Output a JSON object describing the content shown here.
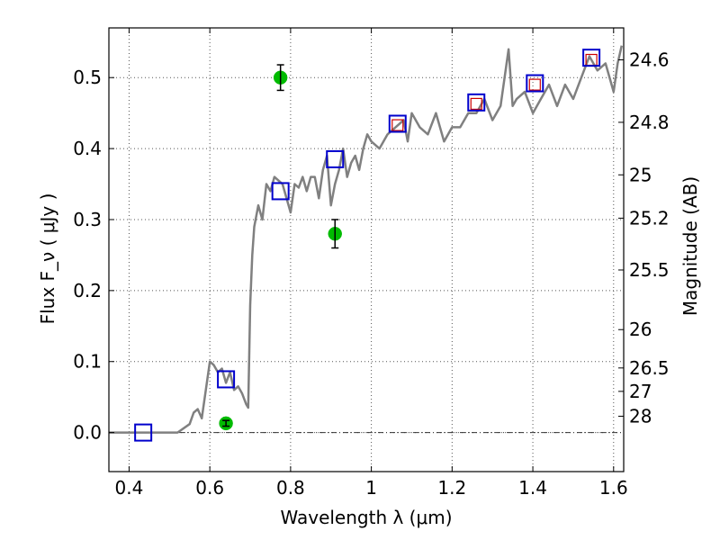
{
  "chart_data": {
    "type": "scatter",
    "title": "",
    "xlabel": "Wavelength  λ (μm)",
    "ylabel": "Flux  F_ν  ( μJy )",
    "ylabel_right": "Magnitude (AB)",
    "xlim": [
      0.35,
      1.625
    ],
    "ylim": [
      -0.055,
      0.57
    ],
    "grid": true,
    "x_ticks": [
      0.4,
      0.6,
      0.8,
      1.0,
      1.2,
      1.4,
      1.6
    ],
    "x_tick_labels": [
      "0.4",
      "0.6",
      "0.8",
      "1",
      "1.2",
      "1.4",
      "1.6"
    ],
    "y_ticks": [
      0.0,
      0.1,
      0.2,
      0.3,
      0.4,
      0.5
    ],
    "y_tick_labels": [
      "0.0",
      "0.1",
      "0.2",
      "0.3",
      "0.4",
      "0.5"
    ],
    "right_ticks": [
      {
        "label": "24.6",
        "flux": 0.525
      },
      {
        "label": "24.8",
        "flux": 0.437
      },
      {
        "label": "25",
        "flux": 0.363
      },
      {
        "label": "25.2",
        "flux": 0.302
      },
      {
        "label": "25.5",
        "flux": 0.229
      },
      {
        "label": "26",
        "flux": 0.145
      },
      {
        "label": "26.5",
        "flux": 0.091
      },
      {
        "label": "27",
        "flux": 0.058
      },
      {
        "label": "28",
        "flux": 0.023
      }
    ],
    "colors": {
      "model": "#808080",
      "observed": "#00bb00",
      "model_box": "#0000cc",
      "model_box_inner": "#cc0000",
      "grid": "#555555",
      "zero_line": "#333333"
    },
    "series": [
      {
        "type": "line",
        "x": [
          0.35,
          0.52,
          0.55,
          0.56,
          0.57,
          0.58,
          0.59,
          0.6,
          0.61,
          0.62,
          0.63,
          0.64,
          0.65,
          0.66,
          0.67,
          0.68,
          0.69,
          0.695,
          0.7,
          0.705,
          0.71,
          0.72,
          0.73,
          0.74,
          0.75,
          0.76,
          0.77,
          0.78,
          0.8,
          0.81,
          0.82,
          0.83,
          0.84,
          0.85,
          0.86,
          0.87,
          0.88,
          0.89,
          0.9,
          0.91,
          0.92,
          0.93,
          0.94,
          0.95,
          0.96,
          0.97,
          0.98,
          0.99,
          1.0,
          1.02,
          1.04,
          1.06,
          1.08,
          1.09,
          1.1,
          1.12,
          1.14,
          1.16,
          1.18,
          1.2,
          1.22,
          1.24,
          1.26,
          1.28,
          1.3,
          1.32,
          1.34,
          1.35,
          1.36,
          1.38,
          1.4,
          1.42,
          1.44,
          1.46,
          1.48,
          1.5,
          1.52,
          1.54,
          1.56,
          1.58,
          1.6,
          1.61,
          1.62
        ],
        "y": [
          0.0,
          0.0,
          0.012,
          0.028,
          0.033,
          0.02,
          0.06,
          0.1,
          0.095,
          0.085,
          0.09,
          0.07,
          0.085,
          0.06,
          0.065,
          0.055,
          0.04,
          0.035,
          0.18,
          0.25,
          0.29,
          0.32,
          0.3,
          0.35,
          0.34,
          0.36,
          0.355,
          0.35,
          0.31,
          0.35,
          0.345,
          0.36,
          0.34,
          0.36,
          0.36,
          0.33,
          0.37,
          0.39,
          0.32,
          0.35,
          0.37,
          0.4,
          0.36,
          0.38,
          0.39,
          0.37,
          0.4,
          0.42,
          0.41,
          0.4,
          0.42,
          0.43,
          0.44,
          0.41,
          0.45,
          0.43,
          0.42,
          0.45,
          0.41,
          0.43,
          0.43,
          0.45,
          0.45,
          0.47,
          0.44,
          0.46,
          0.54,
          0.46,
          0.47,
          0.48,
          0.45,
          0.47,
          0.49,
          0.46,
          0.49,
          0.47,
          0.5,
          0.53,
          0.51,
          0.52,
          0.48,
          0.52,
          0.545
        ]
      },
      {
        "type": "scatter",
        "marker": "square",
        "x": [
          0.435,
          0.64,
          0.775,
          0.91,
          1.065,
          1.26,
          1.405,
          1.545
        ],
        "y": [
          0.0,
          0.075,
          0.34,
          0.385,
          0.435,
          0.465,
          0.492,
          0.528
        ],
        "inner_y": [
          0.0,
          0.075,
          0.34,
          0.385,
          0.433,
          0.463,
          0.49,
          0.525
        ]
      },
      {
        "type": "scatter",
        "marker": "circle",
        "x": [
          0.64,
          0.775,
          0.91
        ],
        "y": [
          0.013,
          0.5,
          0.28
        ],
        "err": [
          0.004,
          0.018,
          0.02
        ]
      }
    ]
  }
}
